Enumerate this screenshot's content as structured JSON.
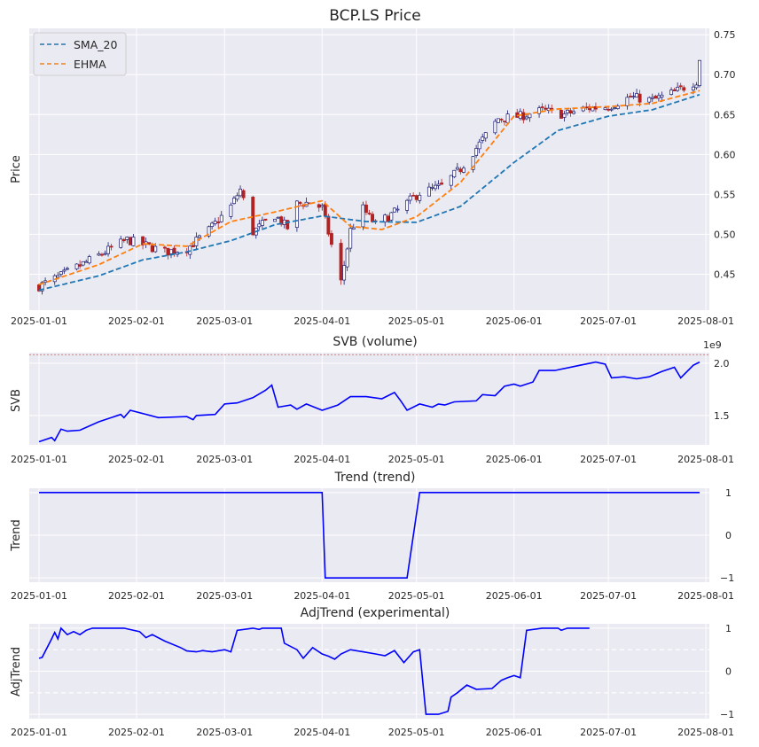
{
  "colors": {
    "bg": "#eaeaf2",
    "grid": "#ffffff",
    "up": "#191970",
    "down": "#b22222",
    "sma": "#1f77b4",
    "ehma": "#ff7f0e",
    "line": "#0000ff",
    "ref": "#e08080"
  },
  "dates": [
    "2025-01-01",
    "2025-02-01",
    "2025-03-01",
    "2025-04-01",
    "2025-05-01",
    "2025-06-01",
    "2025-07-01",
    "2025-08-01"
  ],
  "chart_data": [
    {
      "type": "candlestick",
      "title": "BCP.LS Price",
      "ylabel": "Price",
      "ylim": [
        0.405,
        0.758
      ],
      "yticks": [
        "0.45",
        "0.50",
        "0.55",
        "0.60",
        "0.65",
        "0.70",
        "0.75"
      ],
      "ytick_values": [
        0.45,
        0.5,
        0.55,
        0.6,
        0.65,
        0.7,
        0.75
      ],
      "legend": {
        "position": "top-left",
        "entries": [
          "SMA_20",
          "EHMA"
        ]
      },
      "close_anchors": [
        [
          "2025-01-01",
          0.435
        ],
        [
          "2025-01-08",
          0.448
        ],
        [
          "2025-01-15",
          0.463
        ],
        [
          "2025-01-22",
          0.478
        ],
        [
          "2025-01-29",
          0.493
        ],
        [
          "2025-02-04",
          0.486
        ],
        [
          "2025-02-10",
          0.478
        ],
        [
          "2025-02-17",
          0.482
        ],
        [
          "2025-02-24",
          0.505
        ],
        [
          "2025-03-03",
          0.535
        ],
        [
          "2025-03-06",
          0.556
        ],
        [
          "2025-03-10",
          0.503
        ],
        [
          "2025-03-17",
          0.524
        ],
        [
          "2025-03-21",
          0.508
        ],
        [
          "2025-03-24",
          0.538
        ],
        [
          "2025-03-28",
          0.54
        ],
        [
          "2025-04-01",
          0.533
        ],
        [
          "2025-04-03",
          0.502
        ],
        [
          "2025-04-07",
          0.44
        ],
        [
          "2025-04-10",
          0.505
        ],
        [
          "2025-04-14",
          0.532
        ],
        [
          "2025-04-18",
          0.512
        ],
        [
          "2025-04-25",
          0.53
        ],
        [
          "2025-05-02",
          0.552
        ],
        [
          "2025-05-09",
          0.56
        ],
        [
          "2025-05-15",
          0.582
        ],
        [
          "2025-05-20",
          0.608
        ],
        [
          "2025-05-27",
          0.645
        ],
        [
          "2025-06-03",
          0.648
        ],
        [
          "2025-06-10",
          0.655
        ],
        [
          "2025-06-17",
          0.65
        ],
        [
          "2025-06-24",
          0.658
        ],
        [
          "2025-07-01",
          0.66
        ],
        [
          "2025-07-08",
          0.672
        ],
        [
          "2025-07-15",
          0.668
        ],
        [
          "2025-07-22",
          0.678
        ],
        [
          "2025-07-29",
          0.692
        ],
        [
          "2025-07-30",
          0.72
        ]
      ],
      "sma_anchors": [
        [
          "2025-01-01",
          0.43
        ],
        [
          "2025-01-20",
          0.448
        ],
        [
          "2025-02-03",
          0.468
        ],
        [
          "2025-02-17",
          0.478
        ],
        [
          "2025-03-03",
          0.492
        ],
        [
          "2025-03-17",
          0.512
        ],
        [
          "2025-04-01",
          0.523
        ],
        [
          "2025-04-15",
          0.516
        ],
        [
          "2025-05-01",
          0.515
        ],
        [
          "2025-05-15",
          0.535
        ],
        [
          "2025-06-01",
          0.59
        ],
        [
          "2025-06-15",
          0.63
        ],
        [
          "2025-07-01",
          0.648
        ],
        [
          "2025-07-15",
          0.656
        ],
        [
          "2025-07-30",
          0.675
        ]
      ],
      "ehma_anchors": [
        [
          "2025-01-01",
          0.437
        ],
        [
          "2025-01-20",
          0.462
        ],
        [
          "2025-02-03",
          0.488
        ],
        [
          "2025-02-17",
          0.485
        ],
        [
          "2025-03-03",
          0.516
        ],
        [
          "2025-03-17",
          0.528
        ],
        [
          "2025-04-01",
          0.542
        ],
        [
          "2025-04-10",
          0.51
        ],
        [
          "2025-04-20",
          0.506
        ],
        [
          "2025-05-01",
          0.522
        ],
        [
          "2025-05-15",
          0.565
        ],
        [
          "2025-06-01",
          0.648
        ],
        [
          "2025-06-15",
          0.657
        ],
        [
          "2025-07-01",
          0.66
        ],
        [
          "2025-07-15",
          0.664
        ],
        [
          "2025-07-30",
          0.68
        ]
      ]
    },
    {
      "type": "line",
      "title": "SVB (volume)",
      "ylabel": "SVB",
      "ylim": [
        1.22,
        2.1
      ],
      "yticks": [
        "1.5",
        "2.0"
      ],
      "ytick_values": [
        1.5,
        2.0
      ],
      "offset_text": "1e9",
      "reference_line": 2.08,
      "anchors": [
        [
          "2025-01-01",
          1.25
        ],
        [
          "2025-01-05",
          1.29
        ],
        [
          "2025-01-06",
          1.26
        ],
        [
          "2025-01-08",
          1.37
        ],
        [
          "2025-01-10",
          1.35
        ],
        [
          "2025-01-14",
          1.36
        ],
        [
          "2025-01-20",
          1.44
        ],
        [
          "2025-01-27",
          1.51
        ],
        [
          "2025-01-28",
          1.48
        ],
        [
          "2025-01-30",
          1.55
        ],
        [
          "2025-02-08",
          1.48
        ],
        [
          "2025-02-17",
          1.49
        ],
        [
          "2025-02-19",
          1.46
        ],
        [
          "2025-02-20",
          1.5
        ],
        [
          "2025-02-26",
          1.51
        ],
        [
          "2025-03-01",
          1.61
        ],
        [
          "2025-03-05",
          1.62
        ],
        [
          "2025-03-10",
          1.67
        ],
        [
          "2025-03-14",
          1.74
        ],
        [
          "2025-03-16",
          1.79
        ],
        [
          "2025-03-18",
          1.58
        ],
        [
          "2025-03-22",
          1.6
        ],
        [
          "2025-03-24",
          1.56
        ],
        [
          "2025-03-27",
          1.61
        ],
        [
          "2025-04-01",
          1.55
        ],
        [
          "2025-04-06",
          1.6
        ],
        [
          "2025-04-10",
          1.68
        ],
        [
          "2025-04-15",
          1.68
        ],
        [
          "2025-04-20",
          1.66
        ],
        [
          "2025-04-24",
          1.72
        ],
        [
          "2025-04-26",
          1.64
        ],
        [
          "2025-04-28",
          1.55
        ],
        [
          "2025-05-02",
          1.61
        ],
        [
          "2025-05-06",
          1.58
        ],
        [
          "2025-05-08",
          1.61
        ],
        [
          "2025-05-10",
          1.6
        ],
        [
          "2025-05-13",
          1.63
        ],
        [
          "2025-05-20",
          1.64
        ],
        [
          "2025-05-22",
          1.7
        ],
        [
          "2025-05-26",
          1.69
        ],
        [
          "2025-05-29",
          1.78
        ],
        [
          "2025-06-01",
          1.8
        ],
        [
          "2025-06-03",
          1.78
        ],
        [
          "2025-06-07",
          1.82
        ],
        [
          "2025-06-09",
          1.93
        ],
        [
          "2025-06-14",
          1.93
        ],
        [
          "2025-06-22",
          1.98
        ],
        [
          "2025-06-27",
          2.01
        ],
        [
          "2025-06-30",
          1.99
        ],
        [
          "2025-07-02",
          1.86
        ],
        [
          "2025-07-06",
          1.87
        ],
        [
          "2025-07-10",
          1.85
        ],
        [
          "2025-07-14",
          1.87
        ],
        [
          "2025-07-18",
          1.92
        ],
        [
          "2025-07-22",
          1.96
        ],
        [
          "2025-07-24",
          1.86
        ],
        [
          "2025-07-28",
          1.98
        ],
        [
          "2025-07-30",
          2.01
        ]
      ]
    },
    {
      "type": "line",
      "title": "Trend (trend)",
      "ylabel": "Trend",
      "ylim": [
        -1.1,
        1.1
      ],
      "yticks": [
        "1",
        "0",
        "−1"
      ],
      "ytick_values": [
        1,
        0,
        -1
      ],
      "anchors": [
        [
          "2025-01-01",
          1
        ],
        [
          "2025-04-01",
          1
        ],
        [
          "2025-04-02",
          -1
        ],
        [
          "2025-04-28",
          -1
        ],
        [
          "2025-05-02",
          1
        ],
        [
          "2025-07-30",
          1
        ]
      ]
    },
    {
      "type": "line",
      "title": "AdjTrend (experimental)",
      "ylabel": "AdjTrend",
      "ylim": [
        -1.1,
        1.1
      ],
      "yticks": [
        "1",
        "0",
        "−1"
      ],
      "ytick_values": [
        1,
        0,
        -1
      ],
      "hlines": [
        0.5,
        -0.5
      ],
      "anchors": [
        [
          "2025-01-01",
          0.3
        ],
        [
          "2025-01-02",
          0.32
        ],
        [
          "2025-01-05",
          0.75
        ],
        [
          "2025-01-06",
          0.9
        ],
        [
          "2025-01-07",
          0.75
        ],
        [
          "2025-01-08",
          1.0
        ],
        [
          "2025-01-10",
          0.85
        ],
        [
          "2025-01-12",
          0.92
        ],
        [
          "2025-01-14",
          0.85
        ],
        [
          "2025-01-16",
          0.95
        ],
        [
          "2025-01-18",
          1.0
        ],
        [
          "2025-01-28",
          1.0
        ],
        [
          "2025-02-02",
          0.92
        ],
        [
          "2025-02-04",
          0.78
        ],
        [
          "2025-02-06",
          0.85
        ],
        [
          "2025-02-10",
          0.7
        ],
        [
          "2025-02-15",
          0.55
        ],
        [
          "2025-02-17",
          0.47
        ],
        [
          "2025-02-20",
          0.45
        ],
        [
          "2025-02-22",
          0.48
        ],
        [
          "2025-02-25",
          0.45
        ],
        [
          "2025-03-01",
          0.5
        ],
        [
          "2025-03-03",
          0.45
        ],
        [
          "2025-03-05",
          0.95
        ],
        [
          "2025-03-10",
          1.0
        ],
        [
          "2025-03-12",
          0.97
        ],
        [
          "2025-03-13",
          1.0
        ],
        [
          "2025-03-19",
          1.0
        ],
        [
          "2025-03-20",
          0.65
        ],
        [
          "2025-03-24",
          0.5
        ],
        [
          "2025-03-26",
          0.3
        ],
        [
          "2025-03-29",
          0.55
        ],
        [
          "2025-04-01",
          0.4
        ],
        [
          "2025-04-03",
          0.35
        ],
        [
          "2025-04-05",
          0.28
        ],
        [
          "2025-04-07",
          0.4
        ],
        [
          "2025-04-10",
          0.5
        ],
        [
          "2025-04-14",
          0.45
        ],
        [
          "2025-04-18",
          0.4
        ],
        [
          "2025-04-21",
          0.36
        ],
        [
          "2025-04-24",
          0.48
        ],
        [
          "2025-04-27",
          0.2
        ],
        [
          "2025-04-30",
          0.45
        ],
        [
          "2025-05-02",
          0.5
        ],
        [
          "2025-05-04",
          -1.0
        ],
        [
          "2025-05-08",
          -1.0
        ],
        [
          "2025-05-11",
          -0.93
        ],
        [
          "2025-05-12",
          -0.6
        ],
        [
          "2025-05-14",
          -0.5
        ],
        [
          "2025-05-17",
          -0.32
        ],
        [
          "2025-05-20",
          -0.42
        ],
        [
          "2025-05-25",
          -0.4
        ],
        [
          "2025-05-28",
          -0.21
        ],
        [
          "2025-05-30",
          -0.15
        ],
        [
          "2025-06-01",
          -0.1
        ],
        [
          "2025-06-03",
          -0.15
        ],
        [
          "2025-06-05",
          0.95
        ],
        [
          "2025-06-10",
          1.0
        ],
        [
          "2025-06-15",
          1.0
        ],
        [
          "2025-06-16",
          0.95
        ],
        [
          "2025-06-18",
          1.0
        ],
        [
          "2025-06-25",
          1.0
        ]
      ]
    }
  ]
}
